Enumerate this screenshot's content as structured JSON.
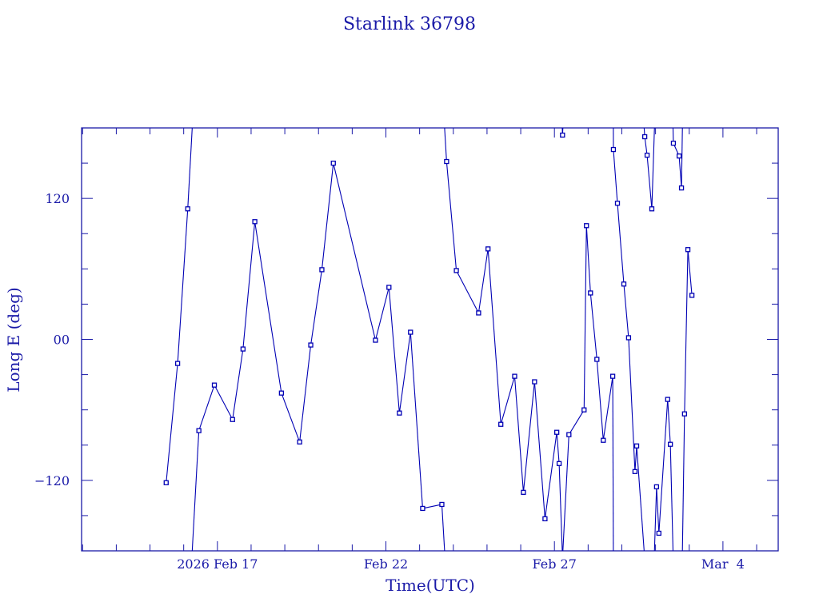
{
  "chart_data": {
    "type": "line",
    "title": "Starlink 36798",
    "xlabel": "Time(UTC)",
    "ylabel": "Long E (deg)",
    "x_units": "days since 2026 Feb 17 00:00 UTC",
    "xlim": [
      -4.03,
      16.64
    ],
    "ylim": [
      -180,
      180
    ],
    "x_major_step": 5,
    "x_minor_step": 1,
    "y_minor_step": 30,
    "x_tick_labels": [
      {
        "x": 0,
        "label": "2026 Feb 17"
      },
      {
        "x": 5,
        "label": "Feb 22"
      },
      {
        "x": 10,
        "label": "Feb 27"
      },
      {
        "x": 15,
        "label": "Mar  4"
      }
    ],
    "y_tick_labels": [
      {
        "y": 120,
        "label": "120"
      },
      {
        "y": 0,
        "label": "00"
      },
      {
        "y": -120,
        "label": "−120"
      }
    ],
    "grid": false,
    "wrap_longitude": true,
    "color": "#0000b4",
    "series": [
      {
        "name": "Starlink 36798",
        "x": [
          -1.52,
          -1.18,
          -0.88,
          -0.55,
          -0.09,
          0.45,
          0.76,
          1.11,
          1.9,
          2.44,
          2.77,
          3.1,
          3.44,
          4.69,
          5.09,
          5.4,
          5.73,
          6.09,
          6.66,
          6.8,
          7.09,
          7.75,
          8.03,
          8.41,
          8.82,
          9.08,
          9.41,
          9.72,
          10.07,
          10.14,
          10.24,
          10.43,
          10.88,
          10.95,
          11.07,
          11.26,
          11.45,
          11.73,
          11.75,
          11.87,
          12.06,
          12.2,
          12.39,
          12.44,
          12.68,
          12.75,
          12.89,
          13.03,
          13.1,
          13.36,
          13.44,
          13.53,
          13.7,
          13.77,
          13.86,
          13.96,
          14.08
        ],
        "y": [
          -122.0,
          -20.5,
          111.1,
          -77.7,
          -38.9,
          -68.2,
          -8.2,
          100.2,
          -45.7,
          -87.3,
          -4.8,
          59.3,
          150.0,
          -0.7,
          44.3,
          -62.7,
          6.1,
          -143.9,
          -140.5,
          151.4,
          58.6,
          22.5,
          77.0,
          -72.3,
          -31.4,
          -130.2,
          -36.1,
          -152.7,
          -79.1,
          -105.7,
          173.9,
          -81.1,
          -60.0,
          96.8,
          39.5,
          -17.0,
          -85.9,
          -31.4,
          161.6,
          115.9,
          47.1,
          1.4,
          -112.5,
          -90.7,
          172.5,
          156.8,
          111.1,
          -125.5,
          -165.0,
          -51.1,
          -89.3,
          167.0,
          156.1,
          128.9,
          -63.4,
          76.4,
          37.5
        ]
      }
    ]
  }
}
